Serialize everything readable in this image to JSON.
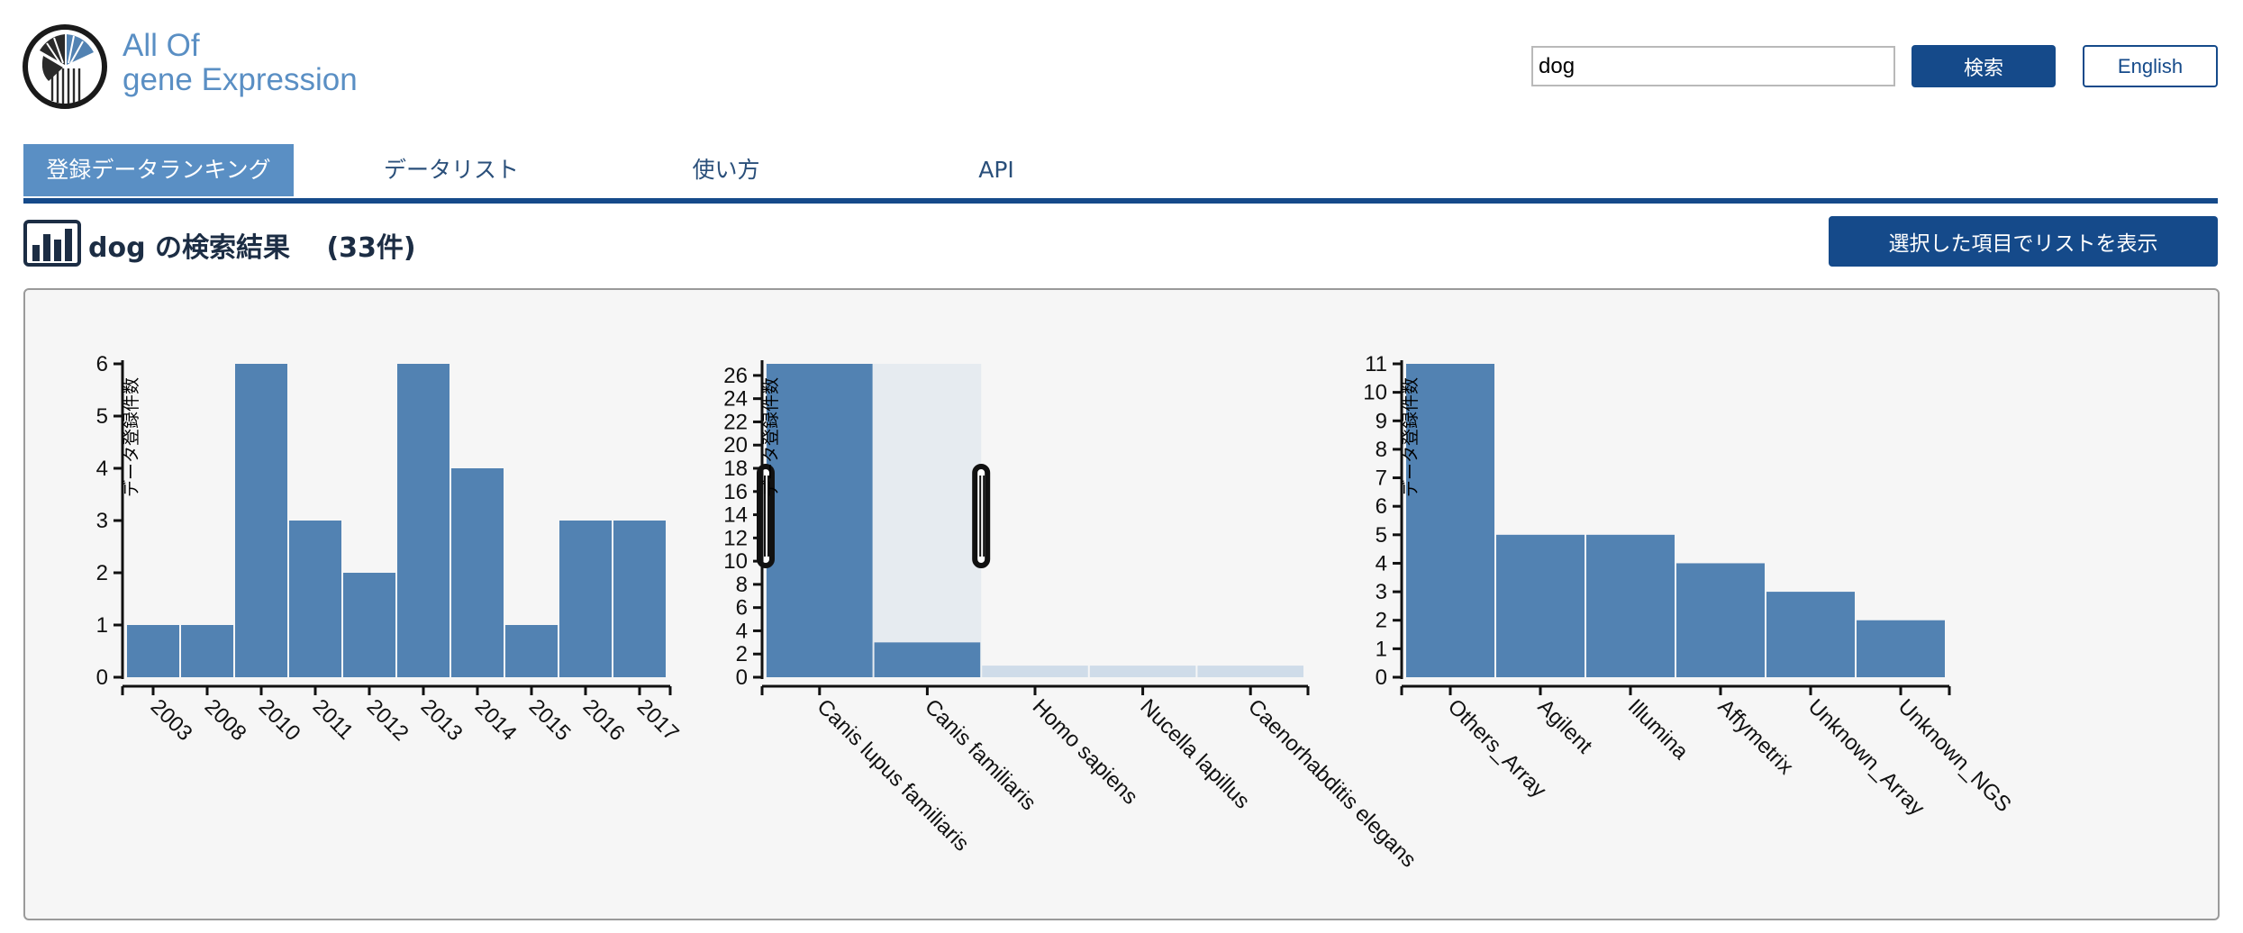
{
  "header": {
    "brand_line1": "All Of",
    "brand_line2": "gene Expression",
    "search_value": "dog",
    "search_button": "検索",
    "language_button": "English"
  },
  "tabs": [
    {
      "label": "登録データランキング",
      "active": true
    },
    {
      "label": "データリスト",
      "active": false
    },
    {
      "label": "使い方",
      "active": false
    },
    {
      "label": "API",
      "active": false
    }
  ],
  "result": {
    "title": "dog の検索結果　 (33件)",
    "list_button": "選択した項目でリストを表示"
  },
  "colors": {
    "bar": "#5282b2",
    "bar_dim": "#cfdce9",
    "brush": "#e6ebf0",
    "nav": "#154a8a",
    "tab_active": "#5a8fc4"
  },
  "chart_data": [
    {
      "type": "bar",
      "title": "",
      "ylabel": "データ登録件数",
      "xlabel": "",
      "categories": [
        "2003",
        "2008",
        "2010",
        "2011",
        "2012",
        "2013",
        "2014",
        "2015",
        "2016",
        "2017"
      ],
      "values": [
        1,
        1,
        6,
        3,
        2,
        6,
        4,
        1,
        3,
        3
      ],
      "ylim": [
        0,
        6
      ],
      "yticks": [
        0,
        1,
        2,
        3,
        4,
        5,
        6
      ]
    },
    {
      "type": "bar",
      "title": "",
      "ylabel": "データ登録件数",
      "xlabel": "",
      "categories": [
        "Canis lupus familiaris",
        "Canis familiaris",
        "Homo sapiens",
        "Nucella lapillus",
        "Caenorhabditis elegans"
      ],
      "values": [
        27,
        3,
        1,
        1,
        1
      ],
      "ylim": [
        0,
        27
      ],
      "yticks": [
        0,
        2,
        4,
        6,
        8,
        10,
        12,
        14,
        16,
        18,
        20,
        22,
        24,
        26
      ],
      "brush_selection": [
        "Canis lupus familiaris",
        "Canis familiaris"
      ]
    },
    {
      "type": "bar",
      "title": "",
      "ylabel": "データ登録件数",
      "xlabel": "",
      "categories": [
        "Others_Array",
        "Agilent",
        "Illumina",
        "Affymetrix",
        "Unknown_Array",
        "Unknown_NGS"
      ],
      "values": [
        11,
        5,
        5,
        4,
        3,
        2
      ],
      "ylim": [
        0,
        11
      ],
      "yticks": [
        0,
        1,
        2,
        3,
        4,
        5,
        6,
        7,
        8,
        9,
        10,
        11
      ]
    }
  ]
}
